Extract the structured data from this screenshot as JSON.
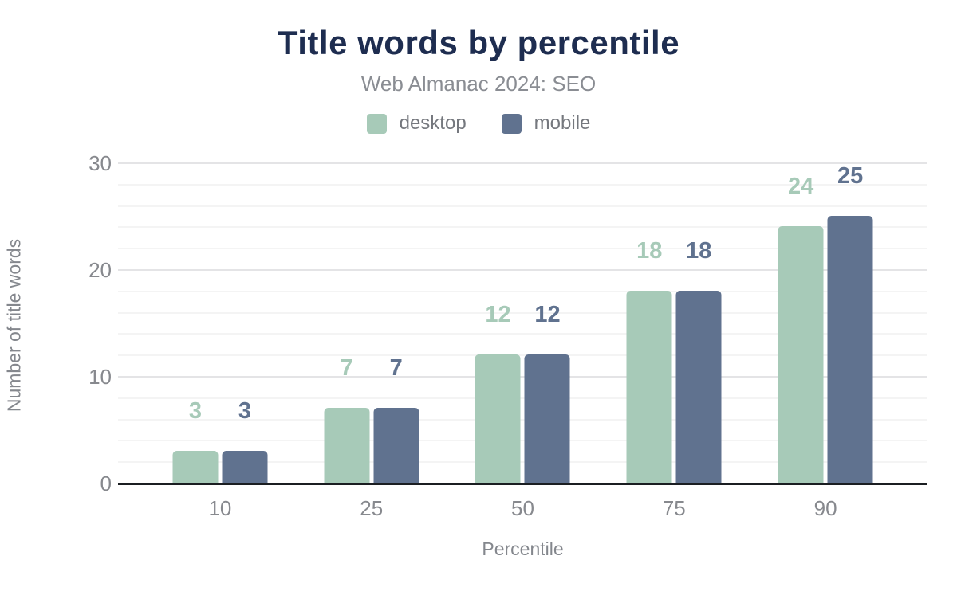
{
  "chart_data": {
    "type": "bar",
    "title": "Title words by percentile",
    "subtitle": "Web Almanac 2024: SEO",
    "xlabel": "Percentile",
    "ylabel": "Number of title words",
    "categories": [
      "10",
      "25",
      "50",
      "75",
      "90"
    ],
    "series": [
      {
        "name": "desktop",
        "color": "#a7cab8",
        "values": [
          3,
          7,
          12,
          18,
          24
        ]
      },
      {
        "name": "mobile",
        "color": "#60728f",
        "values": [
          3,
          7,
          12,
          18,
          25
        ]
      }
    ],
    "ylim": [
      0,
      30
    ],
    "yticks": [
      0,
      10,
      20,
      30
    ],
    "grid_minor_step": 2,
    "grid": "on",
    "legend_position": "top",
    "colors": {
      "title": "#1e2d50",
      "axis_text": "#87898e",
      "axis_line": "#1b1e22"
    }
  }
}
